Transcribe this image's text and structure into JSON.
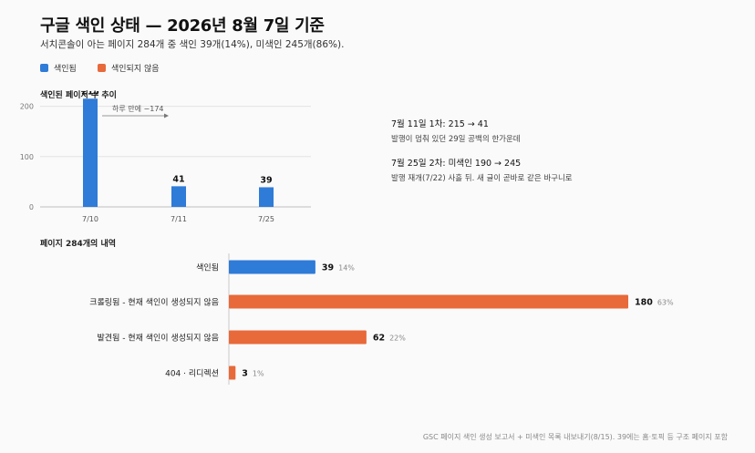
{
  "title": "구글 색인 상태 — 2026년 8월 7일 기준",
  "subtitle": "서치콘솔이 아는 페이지 284개 중 색인 39개(14%), 미색인 245개(86%).",
  "legend": [
    {
      "label": "색인됨",
      "color": "#2f7bd8"
    },
    {
      "label": "색인되지 않음",
      "color": "#e8693a"
    }
  ],
  "notes": [
    {
      "head": "7월 11일 1차: 215 → 41",
      "body": "발행이 멈춰 있던 29일 공백의 한가운데"
    },
    {
      "head": "7월 25일 2차: 미색인 190 → 245",
      "body": "발행 재개(7/22) 사흘 뒤. 새 글이 곧바로 같은 바구니로"
    }
  ],
  "footer": "GSC 페이지 색인 생성 보고서 + 미색인 목록 내보내기(8/15). 39에는 홈·토픽 등 구조 페이지 포함",
  "chart_data": [
    {
      "type": "bar",
      "title": "색인된 페이지 수 추이",
      "categories": [
        "7/10",
        "7/11",
        "7/25"
      ],
      "values": [
        215,
        41,
        39
      ],
      "ylim": [
        0,
        230
      ],
      "yticks": [
        0,
        100,
        200
      ],
      "grid": true,
      "color": "#2f7bd8",
      "annotations": [
        {
          "text": "하루 만에 −174",
          "from": "7/10",
          "to": "7/11"
        }
      ]
    },
    {
      "type": "bar",
      "orientation": "horizontal",
      "title": "페이지 284개의 내역",
      "categories": [
        "색인됨",
        "크롤링됨 - 현재 색인이 생성되지 않음",
        "발견됨 - 현재 색인이 생성되지 않음",
        "404 · 리디렉션"
      ],
      "values": [
        39,
        180,
        62,
        3
      ],
      "percent_labels": [
        "14%",
        "63%",
        "22%",
        "1%"
      ],
      "colors": [
        "#2f7bd8",
        "#e8693a",
        "#e8693a",
        "#e8693a"
      ],
      "xlim": [
        0,
        180
      ]
    }
  ]
}
